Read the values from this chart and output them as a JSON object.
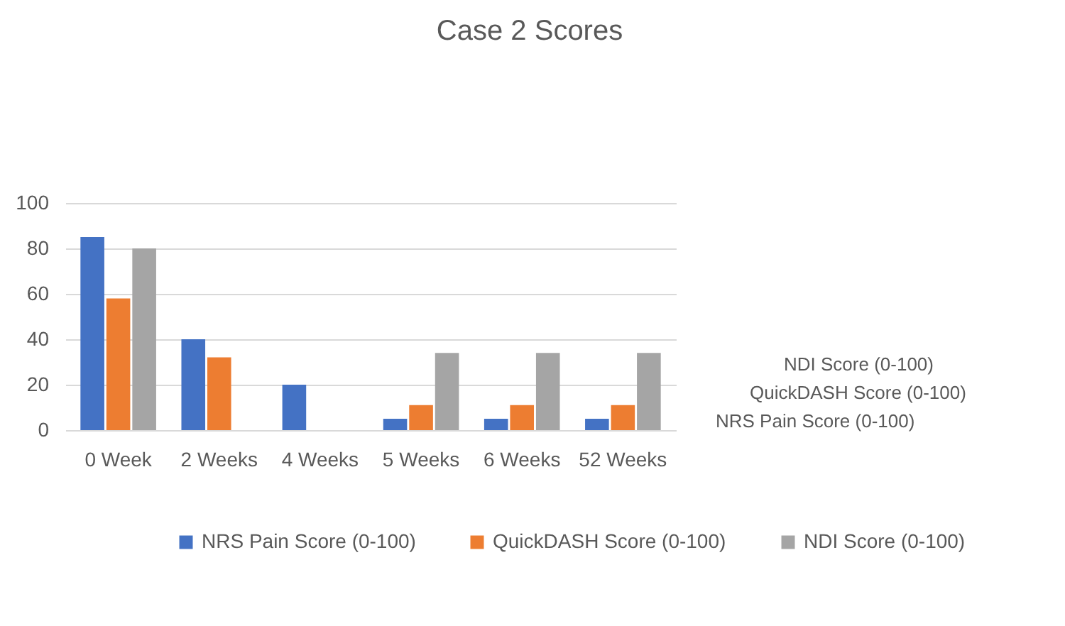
{
  "chart_data": {
    "type": "bar",
    "title": "Case 2 Scores",
    "categories": [
      "0 Week",
      "2 Weeks",
      "4 Weeks",
      "5 Weeks",
      "6 Weeks",
      "52 Weeks"
    ],
    "series": [
      {
        "name": "NRS Pain Score (0-100)",
        "color": "#4472c4",
        "values": [
          85,
          40,
          20,
          5,
          5,
          5
        ]
      },
      {
        "name": "QuickDASH Score (0-100)",
        "color": "#ed7d31",
        "values": [
          58,
          32,
          null,
          11,
          11,
          11
        ]
      },
      {
        "name": "NDI Score (0-100)",
        "color": "#a5a5a5",
        "values": [
          80,
          null,
          null,
          34,
          34,
          34
        ]
      }
    ],
    "ylim": [
      0,
      100
    ],
    "yticks": [
      0,
      20,
      40,
      60,
      80,
      100
    ],
    "grid": "y",
    "legend": "bottom"
  }
}
